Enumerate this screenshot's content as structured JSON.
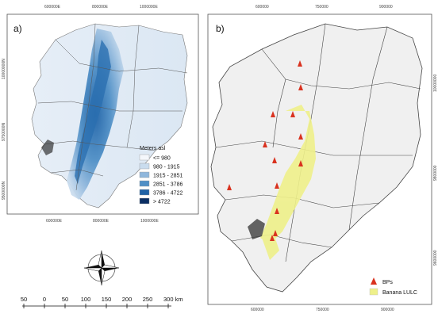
{
  "panel_a": {
    "label": "a)",
    "x_ticks": [
      "600000E",
      "800000E",
      "1000000E"
    ],
    "y_ticks": [
      "10000000N",
      "9750000N",
      "9500000N"
    ],
    "legend": {
      "title": "Meters asl",
      "items": [
        {
          "label": "<= 980",
          "color": "#f4f7fb"
        },
        {
          "label": "980 - 1915",
          "color": "#c9dcee"
        },
        {
          "label": "1915 - 2851",
          "color": "#8fb7dc"
        },
        {
          "label": "2851 - 3786",
          "color": "#4f8fc6"
        },
        {
          "label": "3786 - 4722",
          "color": "#1f62a6"
        },
        {
          "label": "> 4722",
          "color": "#0b2f63"
        }
      ]
    }
  },
  "panel_b": {
    "label": "b)",
    "x_ticks": [
      "750000",
      "900000",
      "600000",
      "750000",
      "900000"
    ],
    "y_ticks": [
      "10000000",
      "9800000",
      "9600000"
    ],
    "legend": {
      "items": [
        {
          "label": "BPs",
          "color": "#d9321f",
          "symbol": "triangle"
        },
        {
          "label": "Banana LULC",
          "color": "#eef08a",
          "symbol": "square"
        }
      ]
    }
  },
  "scale_bar": {
    "labels": [
      "50",
      "0",
      "50",
      "100",
      "150",
      "200",
      "250",
      "300 km"
    ]
  },
  "compass": {
    "icon": "north-arrow-compass-icon"
  }
}
